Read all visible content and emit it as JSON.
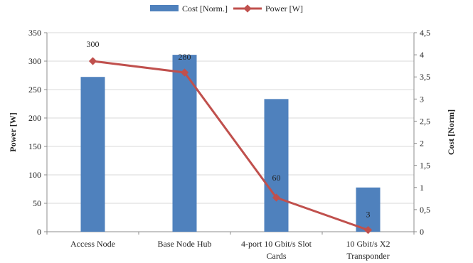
{
  "chart_data": {
    "type": "bar",
    "categories": [
      [
        "Access Node"
      ],
      [
        "Base Node Hub"
      ],
      [
        "4-port 10 Gbit/s Slot",
        "Cards"
      ],
      [
        "10 Gbit/s X2",
        "Transponder"
      ]
    ],
    "series": [
      {
        "name": "Cost [Norm.]",
        "type": "bar",
        "axis": "right",
        "values": [
          3.5,
          4.0,
          3.0,
          1.0
        ]
      },
      {
        "name": "Power [W]",
        "type": "line",
        "axis": "left",
        "values": [
          300,
          280,
          60,
          3
        ],
        "data_labels": [
          "300",
          "280",
          "60",
          "3"
        ]
      }
    ],
    "ylabel": "Power [W]",
    "y2label": "Cost [Norm]",
    "ylim": [
      0,
      350
    ],
    "y2lim": [
      0,
      4.5
    ],
    "yticks": [
      "0",
      "50",
      "100",
      "150",
      "200",
      "250",
      "300",
      "350"
    ],
    "y2ticks": [
      "0",
      "0,5",
      "1",
      "1,5",
      "2",
      "2,5",
      "3",
      "3,5",
      "4",
      "4,5"
    ],
    "legend_position": "top-center",
    "grid": true,
    "colors": {
      "bar": "#4F81BD",
      "line": "#C0504D",
      "grid": "#D9D9D9",
      "axis": "#8C8C8C"
    }
  }
}
